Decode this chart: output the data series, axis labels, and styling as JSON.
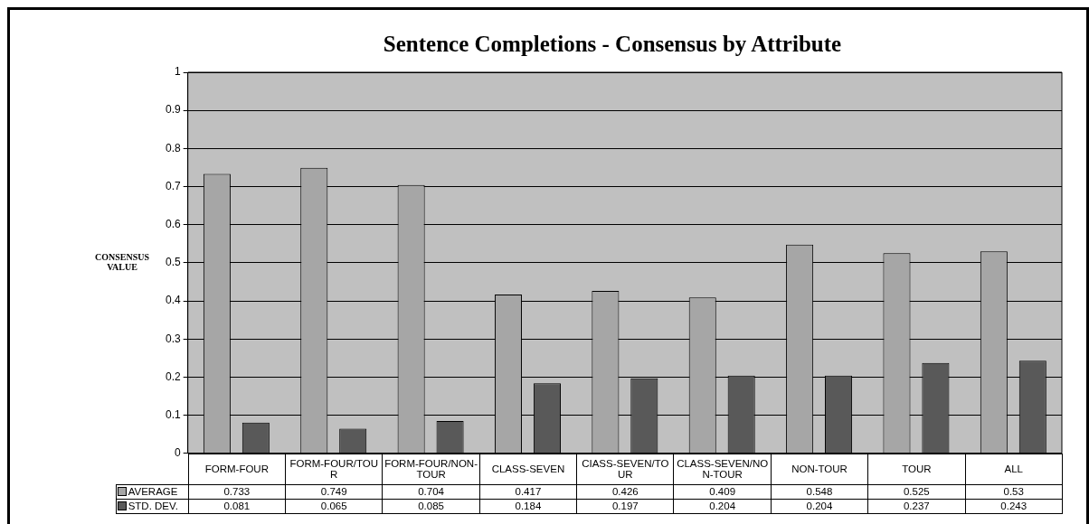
{
  "chart_data": {
    "type": "bar",
    "title": "Sentence Completions - Consensus by Attribute",
    "ylabel": "CONSENSUS VALUE",
    "categories": [
      "FORM-FOUR",
      "FORM-FOUR/TOUR",
      "FORM-FOUR/NON-TOUR",
      "CLASS-SEVEN",
      "CIASS-SEVEN/TOUR",
      "CLASS-SEVEN/NON-TOUR",
      "NON-TOUR",
      "TOUR",
      "ALL"
    ],
    "series": [
      {
        "name": "AVERAGE",
        "color": "#a6a6a6",
        "values": [
          0.733,
          0.749,
          0.704,
          0.417,
          0.426,
          0.409,
          0.548,
          0.525,
          0.53
        ]
      },
      {
        "name": "STD. DEV.",
        "color": "#595959",
        "values": [
          0.081,
          0.065,
          0.085,
          0.184,
          0.197,
          0.204,
          0.204,
          0.237,
          0.243
        ]
      }
    ],
    "ylim": [
      0,
      1
    ],
    "yticks": [
      0,
      0.1,
      0.2,
      0.3,
      0.4,
      0.5,
      0.6,
      0.7,
      0.8,
      0.9,
      1
    ],
    "grid": "y",
    "legend": "bottom",
    "data_labels": true
  }
}
